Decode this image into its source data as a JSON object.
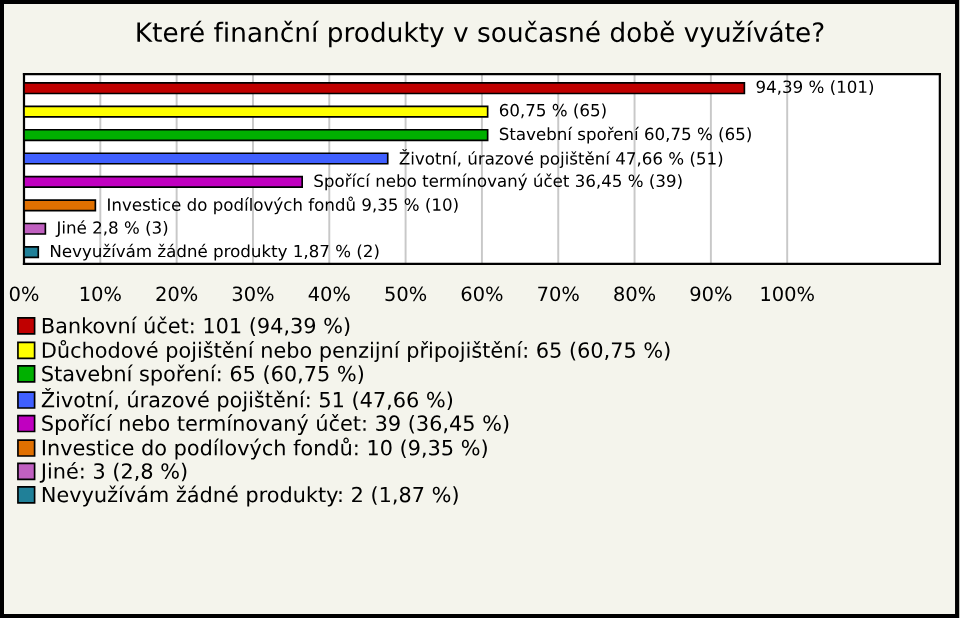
{
  "chart_data": {
    "type": "bar",
    "orientation": "horizontal",
    "title": "Které finanční produkty v současné době využíváte?",
    "categories": [
      null,
      null,
      null,
      null,
      null,
      null,
      null,
      null
    ],
    "series": [
      {
        "name": "Bankovní účet: 101 (94,39 %)",
        "color": "#c00000",
        "values": [
          94.39,
          null,
          null,
          null,
          null,
          null,
          null,
          null
        ],
        "value_labels": [
          "94,39 % (101)",
          null,
          null,
          null,
          null,
          null,
          null,
          null
        ]
      },
      {
        "name": "Důchodové pojištění nebo penzijní připojištění: 65 (60,75 %)",
        "color": "#ffff00",
        "values": [
          null,
          60.75,
          null,
          null,
          null,
          null,
          null,
          null
        ],
        "value_labels": [
          null,
          "60,75 % (65)",
          null,
          null,
          null,
          null,
          null,
          null
        ]
      },
      {
        "name": "Stavební spoření: 65 (60,75 %)",
        "color": "#00b000",
        "values": [
          null,
          null,
          60.75,
          null,
          null,
          null,
          null,
          null
        ],
        "value_labels": [
          null,
          null,
          "Stavební spoření 60,75 % (65)",
          null,
          null,
          null,
          null,
          null
        ]
      },
      {
        "name": "Životní, úrazové pojištění: 51 (47,66 %)",
        "color": "#4060ff",
        "values": [
          null,
          null,
          null,
          47.66,
          null,
          null,
          null,
          null
        ],
        "value_labels": [
          null,
          null,
          null,
          "Životní, úrazové pojištění 47,66 % (51)",
          null,
          null,
          null,
          null
        ]
      },
      {
        "name": "Spořící nebo termínovaný účet: 39 (36,45 %)",
        "color": "#c000c0",
        "values": [
          null,
          null,
          null,
          null,
          36.45,
          null,
          null,
          null
        ],
        "value_labels": [
          null,
          null,
          null,
          null,
          "Spořící nebo termínovaný účet 36,45 % (39)",
          null,
          null,
          null
        ]
      },
      {
        "name": "Investice do podílových fondů: 10 (9,35 %)",
        "color": "#e07000",
        "values": [
          null,
          null,
          null,
          null,
          null,
          9.35,
          null,
          null
        ],
        "value_labels": [
          null,
          null,
          null,
          null,
          null,
          "Investice do podílových fondů 9,35 % (10)",
          null,
          null
        ]
      },
      {
        "name": "Jiné: 3 (2,8 %)",
        "color": "#c060c0",
        "values": [
          null,
          null,
          null,
          null,
          null,
          null,
          2.8,
          null
        ],
        "value_labels": [
          null,
          null,
          null,
          null,
          null,
          null,
          "Jiné 2,8 % (3)",
          null
        ]
      },
      {
        "name": "Nevyužívám žádné produkty: 2 (1,87 %)",
        "color": "#208098",
        "values": [
          null,
          null,
          null,
          null,
          null,
          null,
          null,
          1.87
        ],
        "value_labels": [
          null,
          null,
          null,
          null,
          null,
          null,
          null,
          "Nevyužívám žádné produkty 1,87 % (2)"
        ]
      }
    ],
    "xlim": [
      0,
      120
    ],
    "xticks": [
      {
        "value": 0,
        "label": "0%"
      },
      {
        "value": 10,
        "label": "10%"
      },
      {
        "value": 20,
        "label": "20%"
      },
      {
        "value": 30,
        "label": "30%"
      },
      {
        "value": 40,
        "label": "40%"
      },
      {
        "value": 50,
        "label": "50%"
      },
      {
        "value": 60,
        "label": "60%"
      },
      {
        "value": 70,
        "label": "70%"
      },
      {
        "value": 80,
        "label": "80%"
      },
      {
        "value": 90,
        "label": "90%"
      },
      {
        "value": 100,
        "label": "100%"
      }
    ],
    "grid": "x",
    "legend": "bottom"
  }
}
